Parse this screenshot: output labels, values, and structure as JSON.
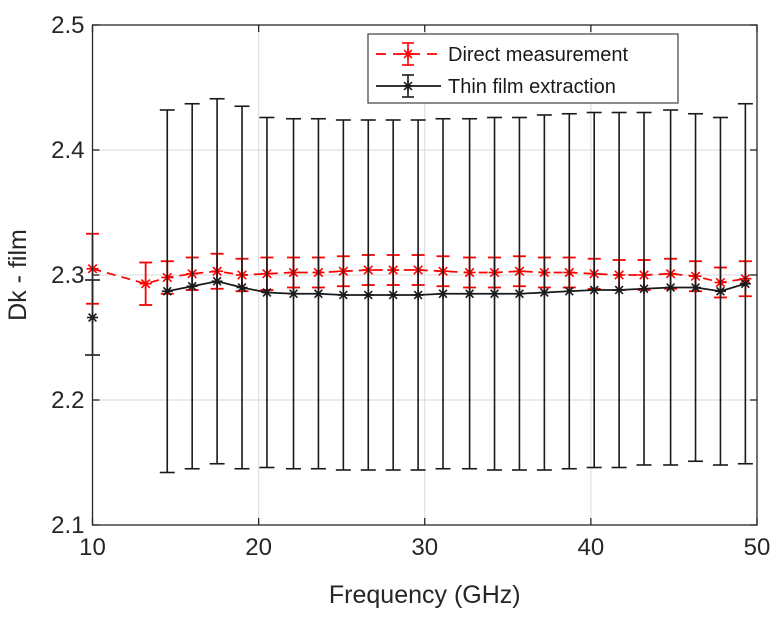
{
  "figure": {
    "background": "#ffffff"
  },
  "chart_data": {
    "type": "line",
    "title": "",
    "xlabel": "Frequency (GHz)",
    "ylabel": "Dk - film",
    "xlim": [
      10,
      50
    ],
    "ylim": [
      2.1,
      2.5
    ],
    "xticks": [
      10,
      20,
      30,
      40,
      50
    ],
    "xtick_labels": [
      "10",
      "20",
      "30",
      "40",
      "50"
    ],
    "yticks": [
      2.1,
      2.2,
      2.3,
      2.4,
      2.5
    ],
    "ytick_labels": [
      "2.1",
      "2.2",
      "2.3",
      "2.4",
      "2.5"
    ],
    "grid": true,
    "legend": {
      "position": "top-right",
      "border": true
    },
    "series": [
      {
        "name": "Direct measurement",
        "color": "#ff0000",
        "line_style": "dashed",
        "marker": "asterisk",
        "error_bars": true,
        "gaps": [],
        "x": [
          10,
          13.2,
          14.5,
          16.0,
          17.5,
          19.0,
          20.5,
          22.1,
          23.6,
          25.1,
          26.6,
          28.1,
          29.6,
          31.1,
          32.7,
          34.2,
          35.7,
          37.2,
          38.7,
          40.2,
          41.7,
          43.2,
          44.8,
          46.3,
          47.8,
          49.3
        ],
        "y": [
          2.305,
          2.293,
          2.298,
          2.301,
          2.303,
          2.3,
          2.301,
          2.302,
          2.302,
          2.303,
          2.304,
          2.304,
          2.304,
          2.303,
          2.302,
          2.302,
          2.303,
          2.302,
          2.302,
          2.301,
          2.3,
          2.3,
          2.301,
          2.299,
          2.294,
          2.297
        ],
        "yerr": [
          0.028,
          0.017,
          0.013,
          0.013,
          0.014,
          0.013,
          0.013,
          0.012,
          0.012,
          0.012,
          0.012,
          0.012,
          0.012,
          0.012,
          0.012,
          0.012,
          0.012,
          0.012,
          0.012,
          0.012,
          0.012,
          0.012,
          0.012,
          0.012,
          0.012,
          0.014
        ]
      },
      {
        "name": "Thin film extraction",
        "color": "#1a1a1a",
        "line_style": "solid",
        "marker": "asterisk",
        "error_bars": true,
        "gaps": [
          0
        ],
        "x": [
          10,
          14.5,
          16.0,
          17.5,
          19.0,
          20.5,
          22.1,
          23.6,
          25.1,
          26.6,
          28.1,
          29.6,
          31.1,
          32.7,
          34.2,
          35.7,
          37.2,
          38.7,
          40.2,
          41.7,
          43.2,
          44.8,
          46.3,
          47.8,
          49.3
        ],
        "y": [
          2.266,
          2.287,
          2.291,
          2.295,
          2.29,
          2.286,
          2.285,
          2.285,
          2.284,
          2.284,
          2.284,
          2.284,
          2.285,
          2.285,
          2.285,
          2.285,
          2.286,
          2.287,
          2.288,
          2.288,
          2.289,
          2.29,
          2.29,
          2.287,
          2.293
        ],
        "yerr": [
          0.03,
          0.145,
          0.146,
          0.146,
          0.145,
          0.14,
          0.14,
          0.14,
          0.14,
          0.14,
          0.14,
          0.14,
          0.14,
          0.14,
          0.141,
          0.141,
          0.142,
          0.142,
          0.142,
          0.142,
          0.141,
          0.142,
          0.139,
          0.139,
          0.144
        ]
      }
    ],
    "colors": {
      "axis": "#262626",
      "grid": "#e0e0e0",
      "plot_background": "#ffffff",
      "legend_border": "#4d4d4d"
    }
  }
}
